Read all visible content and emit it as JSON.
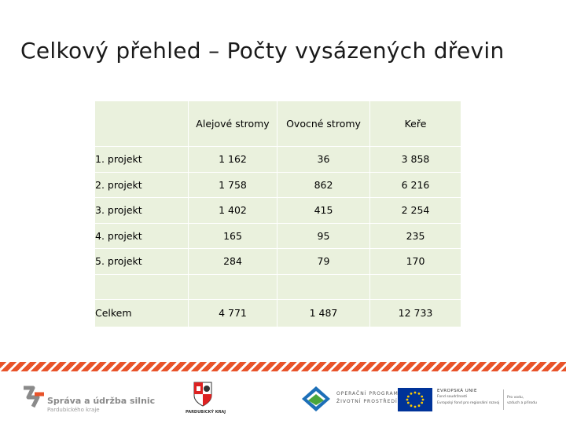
{
  "title": "Celkový přehled – Počty vysázených dřevin",
  "table": {
    "columns": [
      "Alejové stromy",
      "Ovocné stromy",
      "Keře"
    ],
    "rows": [
      {
        "label": "1. projekt",
        "values": [
          "1 162",
          "36",
          "3 858"
        ]
      },
      {
        "label": "2. projekt",
        "values": [
          "1 758",
          "862",
          "6 216"
        ]
      },
      {
        "label": "3. projekt",
        "values": [
          "1 402",
          "415",
          "2 254"
        ]
      },
      {
        "label": "4. projekt",
        "values": [
          "165",
          "95",
          "235"
        ]
      },
      {
        "label": "5. projekt",
        "values": [
          "284",
          "79",
          "170"
        ]
      },
      {
        "label": "",
        "values": [
          "",
          "",
          ""
        ]
      },
      {
        "label": "Celkem",
        "values": [
          "4 771",
          "1 487",
          "12 733"
        ]
      }
    ]
  },
  "colors": {
    "table_fill": "#eaf1dd",
    "stripe": "#e8532a",
    "eu_blue": "#003399",
    "eu_star": "#ffcc00"
  },
  "footer": {
    "sus_line1": "Správa a údržba silnic",
    "sus_line2": "Pardubického kraje",
    "pk_label": "PARDUBICKÝ KRAJ",
    "op_line1": "OPERAČNÍ PROGRAM",
    "op_line2": "ŽIVOTNÍ PROSTŘEDÍ",
    "eu_line1": "EVROPSKÁ UNIE",
    "eu_line2": "Fond soudržnosti",
    "eu_line3": "Evropský fond pro regionální rozvoj",
    "eu_line4": "Pro vodu,",
    "eu_line5": "vzduch a přírodu"
  }
}
